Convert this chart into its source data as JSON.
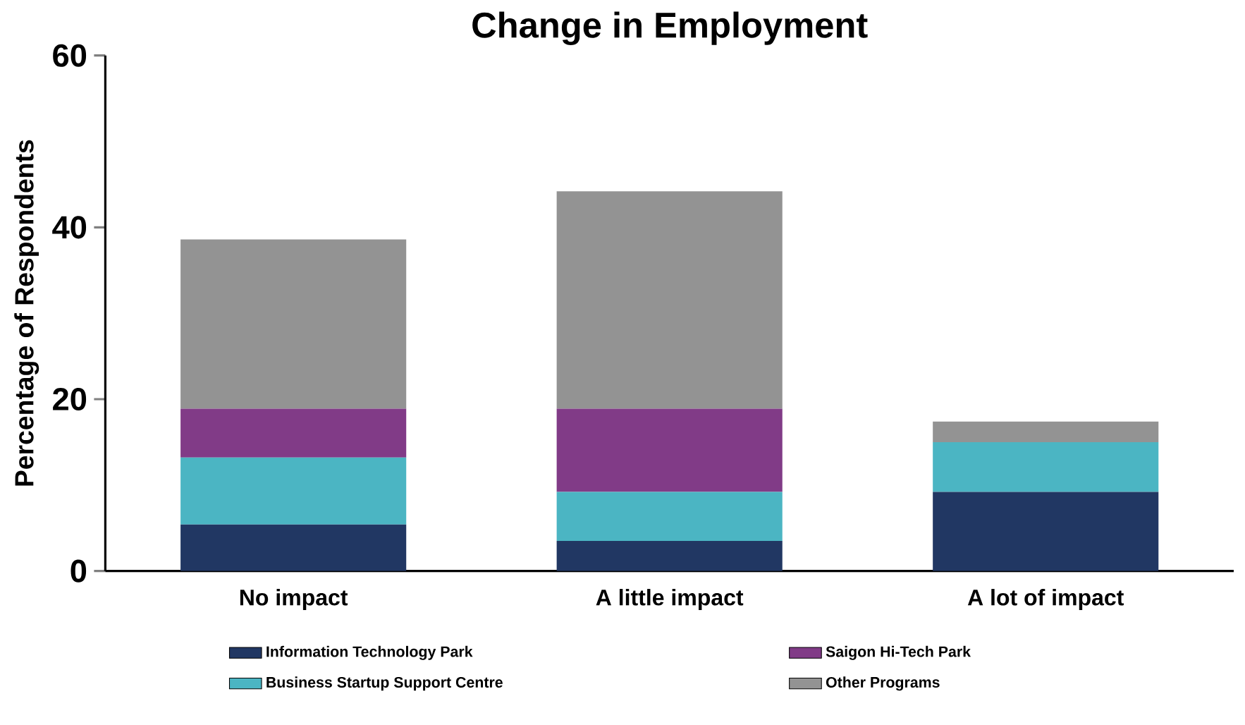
{
  "chart_data": {
    "type": "bar",
    "title": "Change in Employment",
    "ylabel": "Percentage of Respondents",
    "categories": [
      "No impact",
      "A little impact",
      "A lot of impact"
    ],
    "stacked": true,
    "ylim": [
      0,
      60
    ],
    "yticks": [
      0,
      20,
      40,
      60
    ],
    "legend": "bottom",
    "series": [
      {
        "name": "Information Technology Park",
        "color": "#213763",
        "values": [
          5.4,
          3.5,
          9.2
        ]
      },
      {
        "name": "Business Startup Support Centre",
        "color": "#4bb5c3",
        "values": [
          7.8,
          5.7,
          5.8
        ]
      },
      {
        "name": "Saigon Hi-Tech Park",
        "color": "#813b87",
        "values": [
          5.7,
          9.7,
          0
        ]
      },
      {
        "name": "Other Programs",
        "color": "#939393",
        "values": [
          19.7,
          25.3,
          2.4
        ]
      }
    ]
  }
}
